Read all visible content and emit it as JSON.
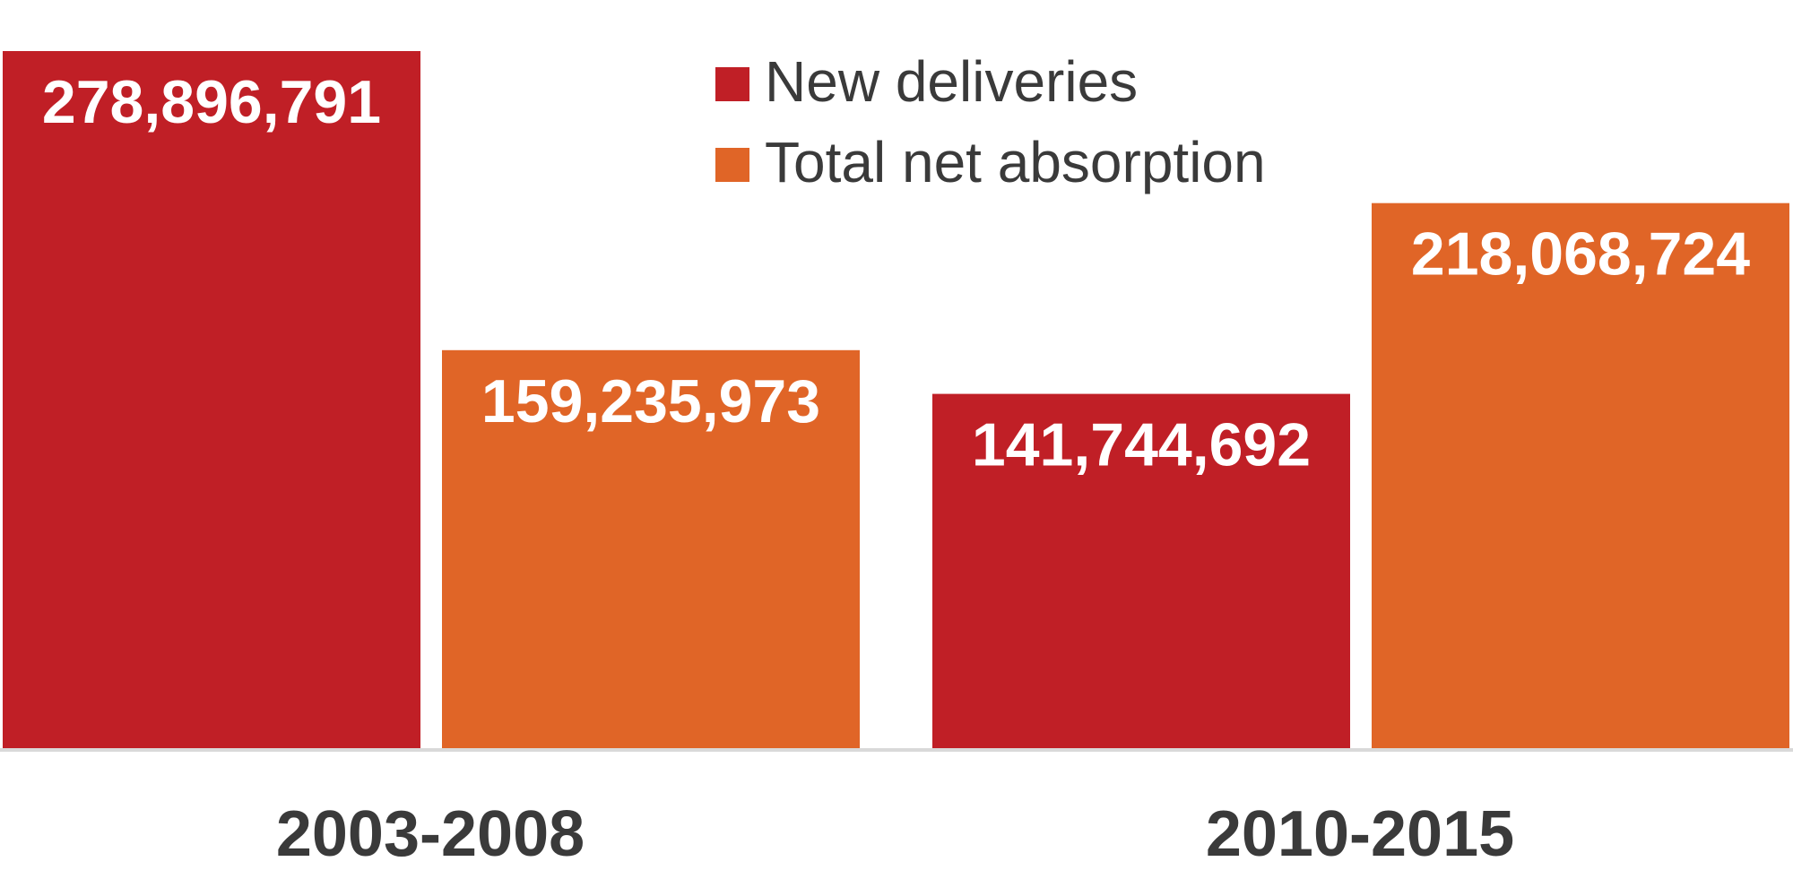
{
  "chart_data": {
    "type": "bar",
    "categories": [
      "2003-2008",
      "2010-2015"
    ],
    "series": [
      {
        "name": "New deliveries",
        "color": "#c01f26",
        "values": [
          278896791,
          141744692
        ]
      },
      {
        "name": "Total net absorption",
        "color": "#e06527",
        "values": [
          159235973,
          218068724
        ]
      }
    ],
    "data_labels": [
      [
        "278,896,791",
        "141,744,692"
      ],
      [
        "159,235,973",
        "218,068,724"
      ]
    ],
    "title": "",
    "xlabel": "",
    "ylabel": "",
    "ylim": [
      0,
      278896791
    ],
    "grid": false,
    "legend": "top-center",
    "axis_line_color": "#d9d9d9"
  }
}
